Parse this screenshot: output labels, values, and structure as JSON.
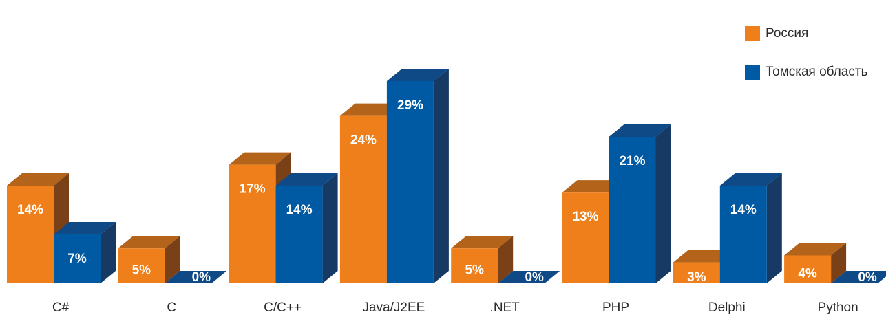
{
  "chart_data": {
    "type": "bar",
    "categories": [
      "C#",
      "C",
      "C/C++",
      "Java/J2EE",
      ".NET",
      "PHP",
      "Delphi",
      "Python"
    ],
    "series": [
      {
        "name": "Россия",
        "values": [
          14,
          5,
          17,
          24,
          5,
          13,
          3,
          4
        ],
        "labels": [
          "14%",
          "5%",
          "17%",
          "24%",
          "5%",
          "13%",
          "3%",
          "4%"
        ]
      },
      {
        "name": "Томская область",
        "values": [
          7,
          0,
          14,
          29,
          0,
          21,
          14,
          0
        ],
        "labels": [
          "7%",
          "0%",
          "14%",
          "29%",
          "0%",
          "21%",
          "14%",
          "0%"
        ]
      }
    ],
    "colors": {
      "Россия": {
        "front": "#ef7f1a",
        "top": "#b3631a",
        "side": "#7a4118"
      },
      "Томская область": {
        "front": "#005aa3",
        "top": "#0f4a86",
        "side": "#163a63"
      }
    },
    "unit": "%",
    "ylim": [
      0,
      29
    ],
    "grid": false,
    "style": "3d",
    "legend_position": "top-right"
  }
}
